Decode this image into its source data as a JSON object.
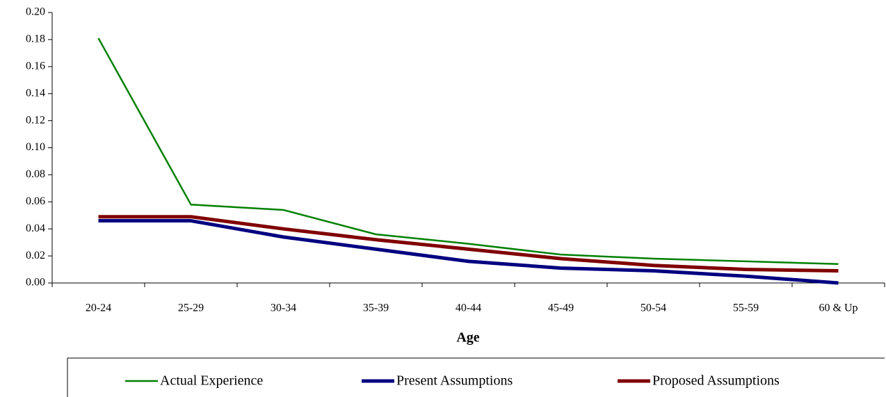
{
  "chart_data": {
    "type": "line",
    "x_label": "Age",
    "categories": [
      "20-24",
      "25-29",
      "30-34",
      "35-39",
      "40-44",
      "45-49",
      "50-54",
      "55-59",
      "60 & Up"
    ],
    "series": [
      {
        "name": "Actual Experience",
        "color": "#008000",
        "values": [
          0.181,
          0.058,
          0.054,
          0.036,
          0.029,
          0.021,
          0.018,
          0.016,
          0.014
        ]
      },
      {
        "name": "Present Assumptions",
        "color": "#000080",
        "values": [
          0.046,
          0.046,
          0.034,
          0.025,
          0.016,
          0.011,
          0.009,
          0.005,
          0.0
        ]
      },
      {
        "name": "Proposed Assumptions",
        "color": "#800000",
        "values": [
          0.049,
          0.049,
          0.04,
          0.032,
          0.025,
          0.018,
          0.013,
          0.01,
          0.009
        ]
      }
    ],
    "ylim": [
      0,
      0.2
    ],
    "yticks": [
      {
        "value": 0,
        "label": "0.00"
      },
      0.02,
      0.04,
      0.06,
      0.08,
      {
        "value": 0.1,
        "label": "0.10"
      },
      0.12,
      0.14,
      0.16,
      0.18,
      {
        "value": 0.2,
        "label": "0.20"
      }
    ],
    "grid": false,
    "legend": "bottom"
  }
}
